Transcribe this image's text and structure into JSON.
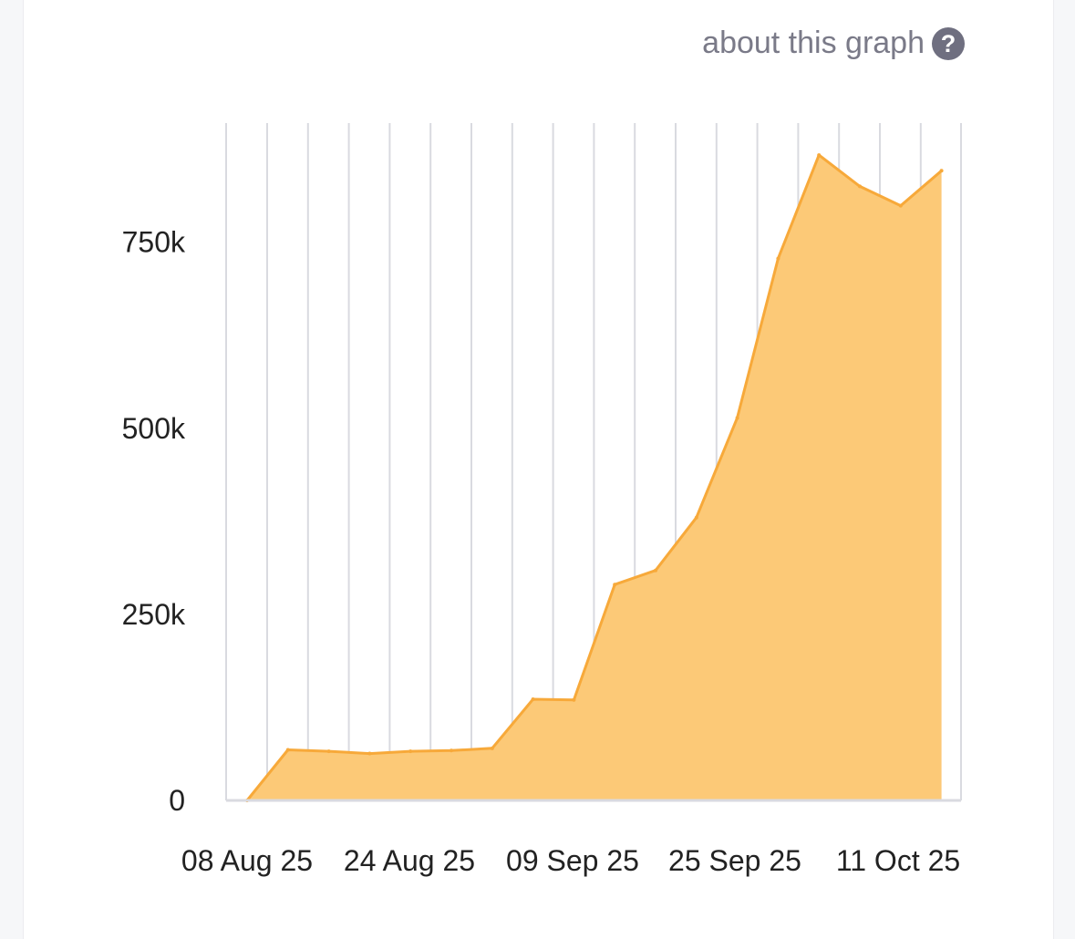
{
  "header": {
    "about_label": "about this graph",
    "help_symbol": "?"
  },
  "colors": {
    "area_fill": "#fcc977",
    "area_stroke": "#f7a93a",
    "gridline": "#d9dae0",
    "axis": "#d9dae0",
    "tick_text": "#222222"
  },
  "chart_data": {
    "type": "area",
    "title": "",
    "xlabel": "",
    "ylabel": "",
    "x_ticks": [
      "08 Aug 25",
      "24 Aug 25",
      "09 Sep 25",
      "25 Sep 25",
      "11 Oct 25"
    ],
    "y_ticks": [
      "0",
      "250k",
      "500k",
      "750k"
    ],
    "y_tick_values": [
      0,
      250000,
      500000,
      750000
    ],
    "ylim": [
      0,
      910000
    ],
    "grid": "vertical",
    "series": [
      {
        "x": [
          "08 Aug 25",
          "12 Aug 25",
          "16 Aug 25",
          "20 Aug 25",
          "24 Aug 25",
          "28 Aug 25",
          "01 Sep 25",
          "05 Sep 25",
          "09 Sep 25",
          "13 Sep 25",
          "17 Sep 25",
          "21 Sep 25",
          "25 Sep 25",
          "29 Sep 25",
          "03 Oct 25",
          "07 Oct 25",
          "11 Oct 25",
          "15 Oct 25"
        ],
        "values": [
          0,
          68000,
          66000,
          63000,
          66000,
          67000,
          70000,
          136000,
          135000,
          290000,
          309000,
          380000,
          514000,
          728000,
          867000,
          825000,
          799000,
          846000
        ]
      }
    ]
  }
}
